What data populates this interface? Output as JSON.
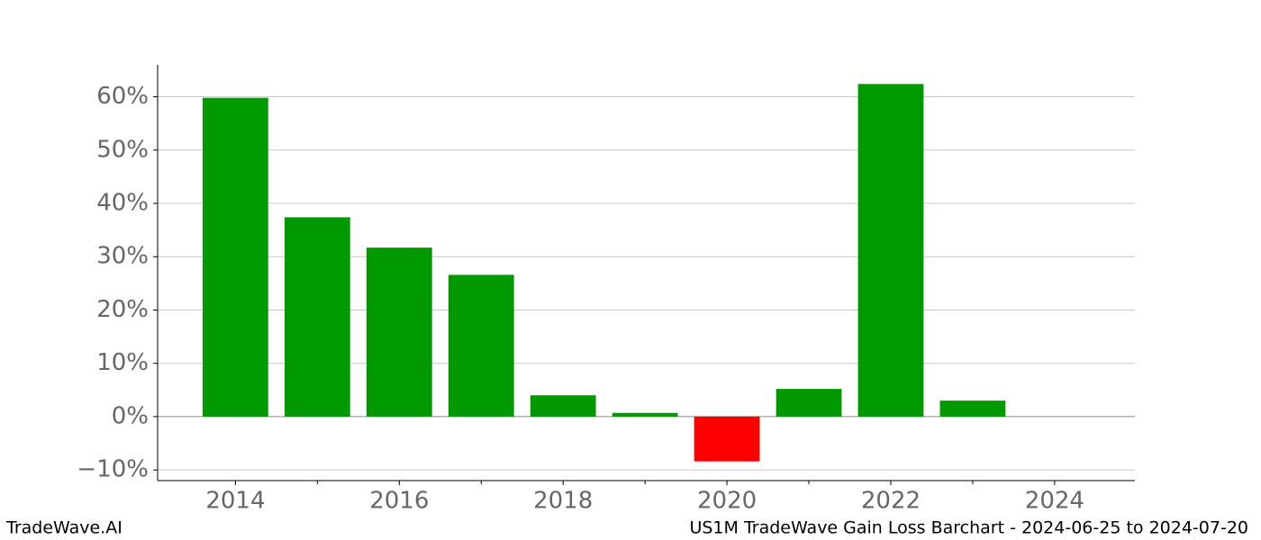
{
  "chart_data": {
    "type": "bar",
    "x": [
      2014,
      2015,
      2016,
      2017,
      2018,
      2019,
      2020,
      2021,
      2022,
      2023
    ],
    "values": [
      59.8,
      37.4,
      31.7,
      26.6,
      4.0,
      0.7,
      -8.4,
      5.2,
      62.4,
      3.0
    ],
    "colors": [
      "#009900",
      "#009900",
      "#009900",
      "#009900",
      "#009900",
      "#009900",
      "#ff0000",
      "#009900",
      "#009900",
      "#009900"
    ],
    "xlim": [
      2013.05,
      2024.98
    ],
    "xticks": [
      2014,
      2016,
      2018,
      2020,
      2022,
      2024
    ],
    "xticks_minor": [
      2015,
      2017,
      2019,
      2021,
      2023
    ],
    "ylim": [
      -12,
      66
    ],
    "yticks": [
      {
        "value": -10,
        "label": "−10%"
      },
      {
        "value": 0,
        "label": "0%"
      },
      {
        "value": 10,
        "label": "10%"
      },
      {
        "value": 20,
        "label": "20%"
      },
      {
        "value": 30,
        "label": "30%"
      },
      {
        "value": 40,
        "label": "40%"
      },
      {
        "value": 50,
        "label": "50%"
      },
      {
        "value": 60,
        "label": "60%"
      }
    ],
    "grid": true,
    "watermark": "TradeWave.AI",
    "caption": "US1M TradeWave Gain Loss Barchart - 2024-06-25 to 2024-07-20"
  }
}
